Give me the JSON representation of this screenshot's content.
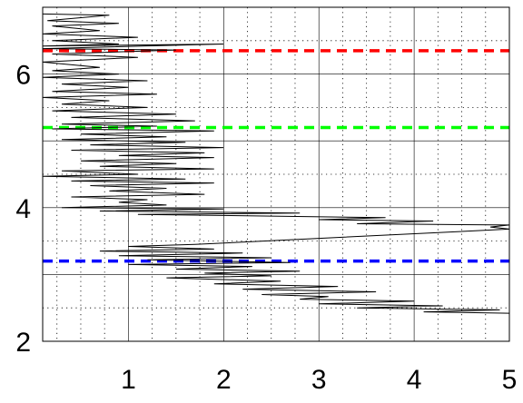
{
  "chart_data": {
    "type": "line",
    "title": "",
    "xlabel": "",
    "ylabel": "",
    "xlim": [
      0.1,
      5.0
    ],
    "ylim": [
      2.0,
      7.0
    ],
    "x_ticks": [
      1,
      2,
      3,
      4,
      5
    ],
    "y_ticks": [
      2,
      4,
      6
    ],
    "x_tick_labels": [
      "1",
      "2",
      "3",
      "4",
      "5"
    ],
    "y_tick_labels": [
      "2",
      "4",
      "6"
    ],
    "grid": {
      "major": true,
      "minor": true,
      "minor_style": "dotted"
    },
    "legend": "none",
    "reference_lines": [
      {
        "y": 6.35,
        "color": "#ff0000",
        "style": "dashed"
      },
      {
        "y": 5.2,
        "color": "#00ff00",
        "style": "dashed"
      },
      {
        "y": 3.2,
        "color": "#0000ff",
        "style": "dashed"
      }
    ],
    "series": [
      {
        "color": "#000000",
        "points": [
          [
            0.1,
            6.9
          ],
          [
            0.8,
            6.88
          ],
          [
            0.15,
            6.8
          ],
          [
            0.9,
            6.76
          ],
          [
            0.2,
            6.72
          ],
          [
            0.7,
            6.65
          ],
          [
            0.1,
            6.6
          ],
          [
            1.1,
            6.55
          ],
          [
            0.2,
            6.5
          ],
          [
            0.9,
            6.45
          ],
          [
            0.1,
            6.42
          ],
          [
            2.0,
            6.45
          ],
          [
            0.1,
            6.38
          ],
          [
            1.5,
            6.36
          ],
          [
            0.2,
            6.3
          ],
          [
            1.1,
            6.25
          ],
          [
            0.1,
            6.18
          ],
          [
            0.7,
            6.1
          ],
          [
            0.2,
            6.05
          ],
          [
            0.9,
            6.0
          ],
          [
            0.1,
            5.95
          ],
          [
            1.2,
            5.9
          ],
          [
            0.3,
            5.85
          ],
          [
            1.0,
            5.8
          ],
          [
            0.2,
            5.74
          ],
          [
            1.3,
            5.7
          ],
          [
            0.1,
            5.65
          ],
          [
            0.8,
            5.6
          ],
          [
            0.3,
            5.55
          ],
          [
            1.2,
            5.5
          ],
          [
            0.2,
            5.45
          ],
          [
            1.5,
            5.4
          ],
          [
            0.4,
            5.35
          ],
          [
            1.7,
            5.3
          ],
          [
            0.3,
            5.25
          ],
          [
            1.3,
            5.22
          ],
          [
            0.2,
            5.18
          ],
          [
            1.9,
            5.15
          ],
          [
            0.5,
            5.1
          ],
          [
            1.4,
            5.06
          ],
          [
            0.3,
            5.02
          ],
          [
            1.6,
            4.98
          ],
          [
            0.6,
            4.94
          ],
          [
            2.0,
            4.9
          ],
          [
            0.4,
            4.86
          ],
          [
            1.8,
            4.82
          ],
          [
            0.9,
            4.78
          ],
          [
            1.9,
            4.75
          ],
          [
            0.5,
            4.7
          ],
          [
            1.5,
            4.66
          ],
          [
            0.7,
            4.62
          ],
          [
            1.9,
            4.58
          ],
          [
            0.3,
            4.55
          ],
          [
            1.1,
            4.5
          ],
          [
            0.1,
            4.47
          ],
          [
            1.6,
            4.43
          ],
          [
            0.4,
            4.4
          ],
          [
            1.9,
            4.37
          ],
          [
            0.6,
            4.33
          ],
          [
            1.4,
            4.29
          ],
          [
            0.8,
            4.25
          ],
          [
            1.8,
            4.2
          ],
          [
            0.4,
            4.16
          ],
          [
            1.2,
            4.12
          ],
          [
            0.9,
            4.08
          ],
          [
            1.4,
            4.04
          ],
          [
            0.3,
            4.0
          ],
          [
            2.0,
            3.98
          ],
          [
            0.7,
            3.95
          ],
          [
            2.8,
            3.92
          ],
          [
            1.1,
            3.9
          ],
          [
            3.7,
            3.85
          ],
          [
            3.0,
            3.82
          ],
          [
            4.2,
            3.8
          ],
          [
            3.4,
            3.76
          ],
          [
            5.0,
            3.74
          ],
          [
            4.8,
            3.71
          ],
          [
            5.0,
            3.68
          ],
          [
            1.7,
            3.45
          ],
          [
            1.0,
            3.42
          ],
          [
            1.9,
            3.38
          ],
          [
            0.7,
            3.35
          ],
          [
            2.2,
            3.32
          ],
          [
            0.9,
            3.28
          ],
          [
            2.5,
            3.25
          ],
          [
            1.2,
            3.22
          ],
          [
            2.7,
            3.18
          ],
          [
            1.0,
            3.15
          ],
          [
            2.3,
            3.12
          ],
          [
            1.5,
            3.08
          ],
          [
            2.8,
            3.05
          ],
          [
            1.8,
            3.02
          ],
          [
            2.5,
            2.98
          ],
          [
            1.4,
            2.95
          ],
          [
            2.6,
            2.9
          ],
          [
            1.9,
            2.86
          ],
          [
            3.2,
            2.82
          ],
          [
            2.2,
            2.78
          ],
          [
            3.6,
            2.74
          ],
          [
            2.4,
            2.7
          ],
          [
            3.1,
            2.67
          ],
          [
            2.8,
            2.63
          ],
          [
            4.0,
            2.6
          ],
          [
            3.0,
            2.56
          ],
          [
            4.3,
            2.53
          ],
          [
            3.4,
            2.5
          ],
          [
            4.9,
            2.47
          ],
          [
            4.1,
            2.44
          ],
          [
            5.0,
            2.42
          ]
        ]
      }
    ]
  }
}
